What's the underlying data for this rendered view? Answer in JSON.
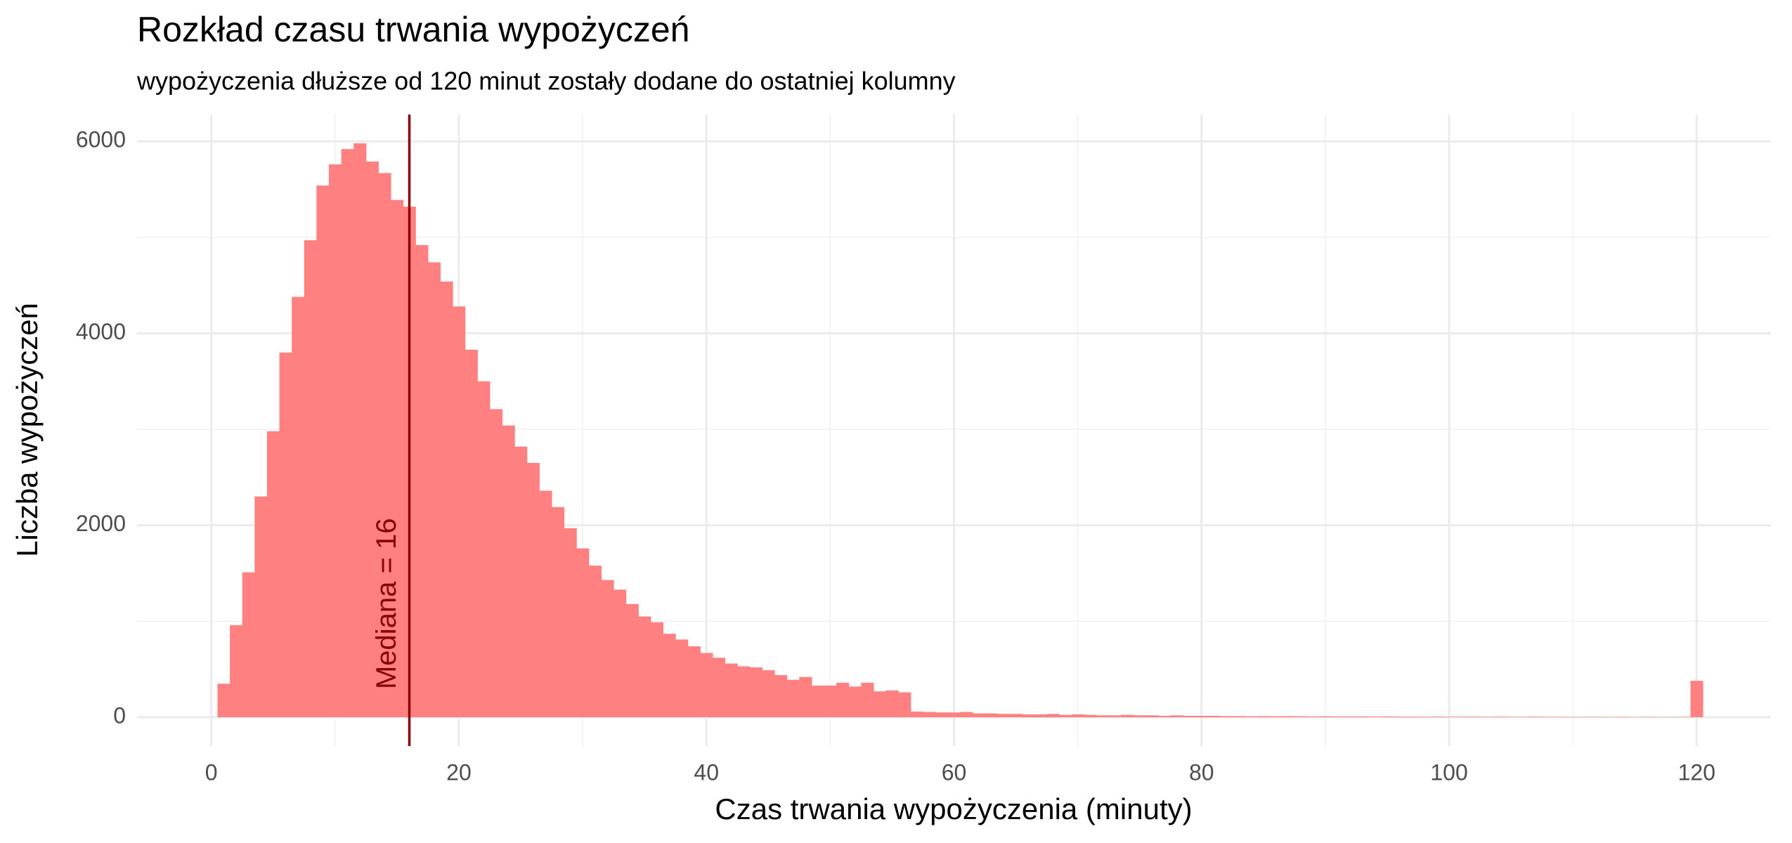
{
  "chart_data": {
    "type": "histogram",
    "title": "Rozkład czasu trwania wypożyczeń",
    "subtitle": "wypożyczenia dłuższe od 120 minut zostały dodane do ostatniej kolumny",
    "x_label": "Czas trwania wypożyczenia (minuty)",
    "y_label": "Liczba wypożyczeń",
    "color": "#ff8080",
    "bins": [
      0.5,
      1.5,
      2.5,
      3.5,
      4.5,
      5.5,
      6.5,
      7.5,
      8.5,
      9.5,
      10.5,
      11.5,
      12.5,
      13.5,
      14.5,
      15.5,
      16.5,
      17.5,
      18.5,
      19.5,
      20.5,
      21.5,
      22.5,
      23.5,
      24.5,
      25.5,
      26.5,
      27.5,
      28.5,
      29.5,
      30.5,
      31.5,
      32.5,
      33.5,
      34.5,
      35.5,
      36.5,
      37.5,
      38.5,
      39.5,
      40.5,
      41.5,
      42.5,
      43.5,
      44.5,
      45.5,
      46.5,
      47.5,
      48.5,
      49.5,
      50.5,
      51.5,
      52.5,
      53.5,
      54.5,
      55.5,
      56.5,
      57.5,
      58.5,
      59.5,
      60.5,
      61.5,
      62.5,
      63.5,
      64.5,
      65.5,
      66.5,
      67.5,
      68.5,
      69.5,
      70.5,
      71.5,
      72.5,
      73.5,
      74.5,
      75.5,
      76.5,
      77.5,
      78.5,
      79.5,
      80.5,
      81.5,
      82.5,
      83.5,
      84.5,
      85.5,
      86.5,
      87.5,
      88.5,
      89.5,
      90.5,
      91.5,
      92.5,
      93.5,
      94.5,
      95.5,
      96.5,
      97.5,
      98.5,
      99.5,
      100.5,
      101.5,
      102.5,
      103.5,
      104.5,
      105.5,
      106.5,
      107.5,
      108.5,
      109.5,
      110.5,
      111.5,
      112.5,
      113.5,
      114.5,
      115.5,
      116.5,
      117.5,
      118.5,
      119.5,
      120.5
    ],
    "counts": [
      350,
      960,
      1510,
      2300,
      2980,
      3800,
      4380,
      4970,
      5540,
      5760,
      5920,
      5980,
      5790,
      5670,
      5390,
      5320,
      4920,
      4740,
      4540,
      4280,
      3830,
      3500,
      3210,
      3040,
      2820,
      2650,
      2360,
      2190,
      1970,
      1760,
      1580,
      1430,
      1330,
      1180,
      1050,
      990,
      870,
      810,
      740,
      670,
      620,
      560,
      530,
      520,
      490,
      440,
      390,
      420,
      330,
      330,
      360,
      320,
      360,
      270,
      280,
      260,
      60,
      55,
      50,
      50,
      55,
      40,
      40,
      35,
      35,
      30,
      30,
      35,
      25,
      30,
      25,
      20,
      20,
      25,
      20,
      20,
      15,
      20,
      15,
      15,
      15,
      12,
      12,
      10,
      12,
      10,
      12,
      10,
      8,
      10,
      8,
      8,
      8,
      6,
      8,
      6,
      6,
      5,
      6,
      5,
      5,
      5,
      4,
      5,
      4,
      4,
      5,
      4,
      4,
      3,
      4,
      4,
      3,
      4,
      3,
      4,
      3,
      3,
      4,
      380
    ],
    "median": 16,
    "annotation": "Mediana =  16",
    "xlim": [
      -6,
      126
    ],
    "ylim": [
      -300,
      6280
    ],
    "xticks": [
      0,
      20,
      40,
      60,
      80,
      100,
      120
    ],
    "yticks": [
      0,
      2000,
      4000,
      6000
    ],
    "xminorticks": [
      10,
      30,
      50,
      70,
      90,
      110
    ],
    "yminorticks": [
      1000,
      3000,
      5000
    ],
    "median_color": "#8b0000",
    "grid": true
  }
}
